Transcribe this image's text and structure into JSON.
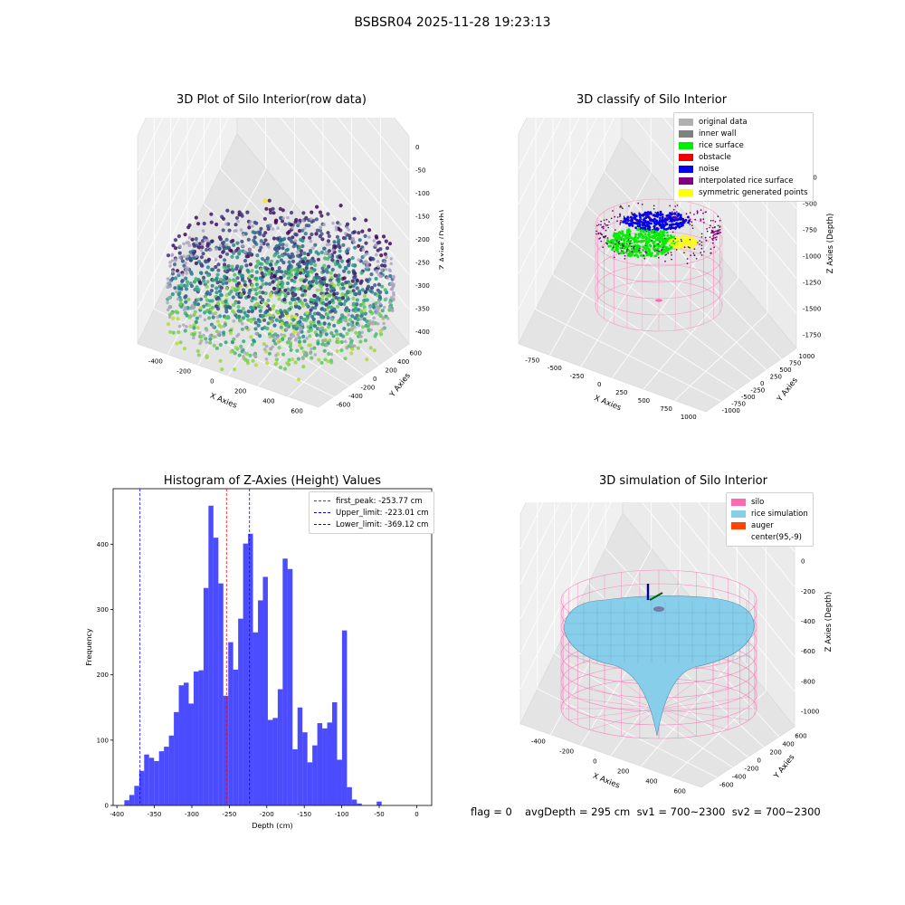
{
  "figure": {
    "suptitle": "BSBSR04 2025-11-28 19:23:13"
  },
  "panel1": {
    "title": "3D Plot of Silo Interior(row data)",
    "xlabel": "X Axies",
    "ylabel": "Y Axies",
    "zlabel": "Z Axies (Depth)",
    "xticks": [
      "-400",
      "-200",
      "0",
      "200",
      "400",
      "600"
    ],
    "yticks": [
      "600",
      "400",
      "200",
      "0",
      "-200",
      "-400",
      "-600"
    ],
    "zticks": [
      "0",
      "-50",
      "-100",
      "-150",
      "-200",
      "-250",
      "-300",
      "-350",
      "-400"
    ]
  },
  "panel2": {
    "title": "3D classify of Silo Interior",
    "xlabel": "X Axies",
    "ylabel": "Y Axies",
    "zlabel": "Z Axies (Depth)",
    "xticks": [
      "-750",
      "-500",
      "-250",
      "0",
      "250",
      "500",
      "750",
      "1000"
    ],
    "yticks": [
      "1000",
      "750",
      "500",
      "250",
      "0",
      "-250",
      "-500",
      "-750",
      "-1000"
    ],
    "zticks": [
      "0",
      "-250",
      "-500",
      "-750",
      "-1000",
      "-1250",
      "-1500",
      "-1750"
    ],
    "legend": [
      {
        "label": "original data",
        "color": "#b0b0b0"
      },
      {
        "label": "inner wall",
        "color": "#808080"
      },
      {
        "label": "rice surface",
        "color": "#00ee00"
      },
      {
        "label": "obstacle",
        "color": "#ee0000"
      },
      {
        "label": "noise",
        "color": "#0000ee"
      },
      {
        "label": "interpolated rice surface",
        "color": "#800080"
      },
      {
        "label": "symmetric generated points",
        "color": "#ffff00"
      }
    ]
  },
  "panel3": {
    "title": "Histogram of Z-Axies (Height) Values",
    "legend": [
      {
        "label": "first_peak: -253.77 cm",
        "color": "#ff0000"
      },
      {
        "label": "Upper_limit: -223.01 cm",
        "color": "#0000ff"
      },
      {
        "label": "Lower_limit: -369.12 cm",
        "color": "#0000ff"
      }
    ]
  },
  "panel4": {
    "title": "3D simulation of Silo Interior",
    "xlabel": "X Axies",
    "ylabel": "Y Axies",
    "zlabel": "Z Axies (Depth)",
    "xticks": [
      "-400",
      "-200",
      "0",
      "200",
      "400",
      "600"
    ],
    "yticks": [
      "600",
      "400",
      "200",
      "0",
      "-200",
      "-400",
      "-600"
    ],
    "zticks": [
      "200",
      "0",
      "-200",
      "-400",
      "-600",
      "-800",
      "-1000"
    ],
    "legend": [
      {
        "label": "silo",
        "color": "#ff69b4"
      },
      {
        "label": "rice simulation",
        "color": "#87ceeb"
      },
      {
        "label": "auger",
        "color": "#ff4500"
      },
      {
        "label": "center(95,-9)",
        "color": "#ffffff"
      }
    ]
  },
  "footer": {
    "flag": "flag = 0",
    "avg": "avgDepth = 295 cm  sv1 = 700~2300  sv2 = 700~2300"
  },
  "chart_data": [
    {
      "type": "scatter",
      "title": "3D Plot of Silo Interior(row data)",
      "xlabel": "X Axies",
      "ylabel": "Y Axies",
      "zlabel": "Z Axies (Depth)",
      "xlim": [
        -500,
        700
      ],
      "ylim": [
        -700,
        700
      ],
      "zlim": [
        -400,
        0
      ],
      "colormap": "viridis",
      "grid": true
    },
    {
      "type": "scatter",
      "title": "3D classify of Silo Interior",
      "xlabel": "X Axies",
      "ylabel": "Y Axies",
      "zlabel": "Z Axies (Depth)",
      "xlim": [
        -900,
        1050
      ],
      "ylim": [
        -1050,
        1050
      ],
      "zlim": [
        -1850,
        100
      ],
      "series": [
        "original data",
        "inner wall",
        "rice surface",
        "obstacle",
        "noise",
        "interpolated rice surface",
        "symmetric generated points"
      ],
      "legend_position": "top-right",
      "grid": true
    },
    {
      "type": "bar",
      "title": "Histogram of Z-Axies (Height) Values",
      "xlabel": "Depth (cm)",
      "ylabel": "Frequency",
      "xlim": [
        -405,
        20
      ],
      "ylim": [
        0,
        485
      ],
      "bin_start": -390,
      "bin_width": 6.6,
      "xticks": [
        -400,
        -350,
        -300,
        -250,
        -200,
        -150,
        -100,
        -50,
        0
      ],
      "yticks": [
        0,
        100,
        200,
        300,
        400
      ],
      "values": [
        8,
        16,
        30,
        53,
        78,
        73,
        68,
        83,
        90,
        107,
        143,
        184,
        188,
        156,
        205,
        207,
        333,
        459,
        410,
        340,
        168,
        250,
        208,
        286,
        401,
        416,
        265,
        314,
        350,
        131,
        134,
        178,
        378,
        362,
        86,
        150,
        112,
        66,
        92,
        126,
        118,
        127,
        158,
        70,
        268,
        28,
        9,
        3,
        0,
        0,
        0,
        6
      ],
      "color": "#0000ff",
      "vlines": [
        {
          "label": "first_peak: -253.77 cm",
          "x": -253.77,
          "color": "#ff0000"
        },
        {
          "label": "Upper_limit: -223.01 cm",
          "x": -223.01,
          "color": "#0000ff"
        },
        {
          "label": "Lower_limit: -369.12 cm",
          "x": -369.12,
          "color": "#0000ff"
        }
      ],
      "legend_position": "top-right"
    },
    {
      "type": "area",
      "title": "3D simulation of Silo Interior",
      "xlabel": "X Axies",
      "ylabel": "Y Axies",
      "zlabel": "Z Axies (Depth)",
      "xlim": [
        -500,
        700
      ],
      "ylim": [
        -700,
        700
      ],
      "zlim": [
        -1100,
        300
      ],
      "series": [
        "silo",
        "rice simulation",
        "auger",
        "center(95,-9)"
      ],
      "legend_position": "top-right",
      "grid": true
    }
  ]
}
